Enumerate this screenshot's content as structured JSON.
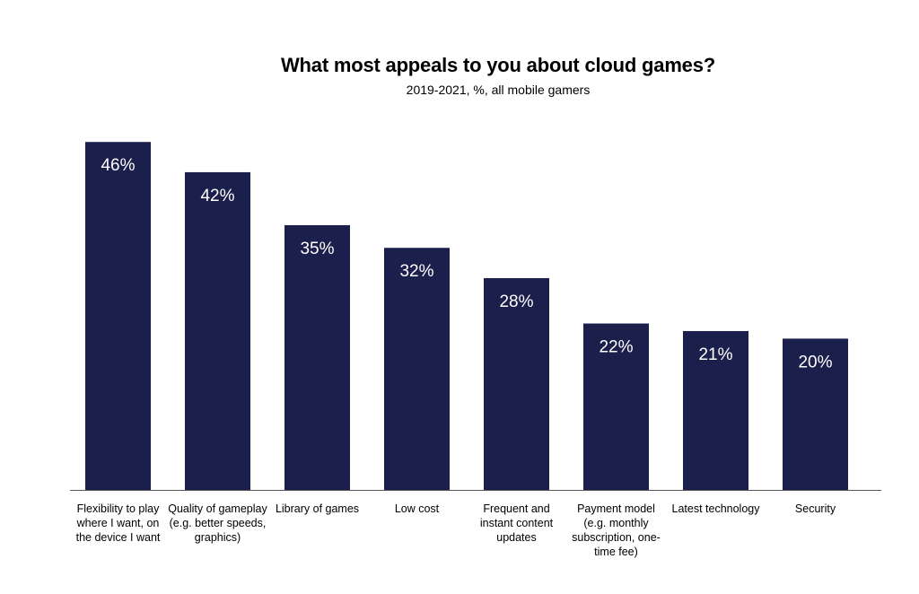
{
  "chart_data": {
    "type": "bar",
    "title": "What most appeals to you about cloud games?",
    "subtitle": "2019-2021, %, all mobile gamers",
    "categories": [
      "Flexibility to play where I want, on the device I want",
      "Quality of gameplay (e.g. better speeds, graphics)",
      "Library of games",
      "Low cost",
      "Frequent and instant content updates",
      "Payment model (e.g. monthly subscription, one-time fee)",
      "Latest technology",
      "Security"
    ],
    "values": [
      46,
      42,
      35,
      32,
      28,
      22,
      21,
      20
    ],
    "data_labels": [
      "46%",
      "42%",
      "35%",
      "32%",
      "28%",
      "22%",
      "21%",
      "20%"
    ],
    "unit": "%",
    "ylim": [
      0,
      48
    ],
    "grid": false,
    "legend": "none",
    "bar_color": "#1b1f4b",
    "axis_color": "#555555"
  }
}
